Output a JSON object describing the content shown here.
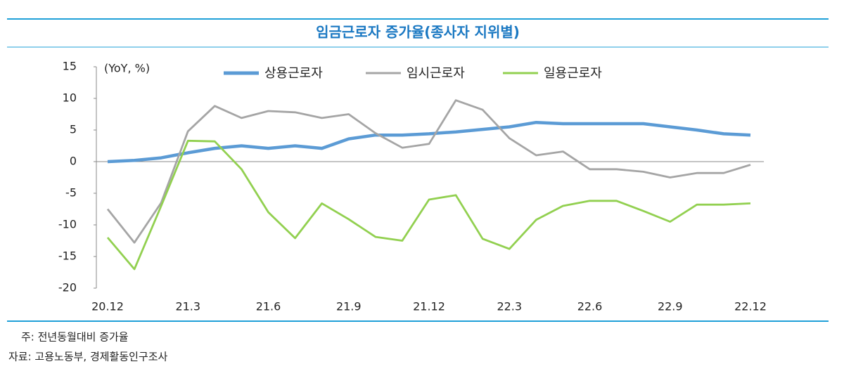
{
  "chart_data": {
    "type": "line",
    "title": "임금근로자 증가율(종사자 지위별)",
    "y_label": "(YoY, %)",
    "categories": [
      "20.12",
      null,
      null,
      "21.3",
      null,
      null,
      "21.6",
      null,
      null,
      "21.9",
      null,
      null,
      "21.12",
      null,
      null,
      "22.3",
      null,
      null,
      "22.6",
      null,
      null,
      "22.9",
      null,
      null,
      "22.12"
    ],
    "series": [
      {
        "name": "상용근로자",
        "color": "#5b9bd5",
        "values": [
          0.0,
          0.2,
          0.6,
          1.4,
          2.1,
          2.5,
          2.1,
          2.5,
          2.1,
          3.6,
          4.2,
          4.2,
          4.4,
          4.7,
          5.1,
          5.5,
          6.2,
          6.0,
          6.0,
          6.0,
          6.0,
          5.5,
          5.0,
          4.4,
          4.2
        ]
      },
      {
        "name": "임시근로자",
        "color": "#a5a5a5",
        "values": [
          -7.5,
          -12.8,
          -6.5,
          4.8,
          8.8,
          6.9,
          8.0,
          7.8,
          6.9,
          7.5,
          4.5,
          2.2,
          2.8,
          9.7,
          8.2,
          3.7,
          1.0,
          1.6,
          -1.2,
          -1.2,
          -1.6,
          -2.5,
          -1.8,
          -1.8,
          -0.5
        ]
      },
      {
        "name": "일용근로자",
        "color": "#92d050",
        "values": [
          -12.0,
          -17.0,
          -7.0,
          3.3,
          3.2,
          -1.2,
          -8.0,
          -12.1,
          -6.6,
          -9.1,
          -11.9,
          -12.5,
          -6.0,
          -5.3,
          -12.2,
          -13.8,
          -9.2,
          -7.0,
          -6.2,
          -6.2,
          -7.8,
          -9.5,
          -6.8,
          -6.8,
          -6.6
        ]
      }
    ],
    "ylim": [
      -20,
      15
    ],
    "yticks": [
      -20,
      -15,
      -10,
      -5,
      0,
      5,
      10,
      15
    ],
    "grid": false,
    "legend": "top",
    "notes": [
      "주: 전년동월대비 증가율",
      "자료: 고용노동부, 경제활동인구조사"
    ]
  }
}
